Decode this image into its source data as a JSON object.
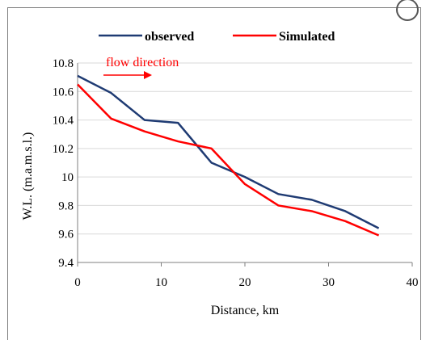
{
  "chart_data": {
    "type": "line",
    "title": "",
    "xlabel": "Distance, km",
    "ylabel": "W.L. (m.a.m.s.l.)",
    "xlim": [
      0,
      40
    ],
    "ylim": [
      9.4,
      10.8
    ],
    "x_ticks": [
      "0",
      "10",
      "20",
      "30",
      "40"
    ],
    "y_ticks": [
      "9.4",
      "9.6",
      "9.8",
      "10",
      "10.2",
      "10.4",
      "10.6",
      "10.8"
    ],
    "legend_position": "top",
    "grid": "horizontal",
    "annotation": {
      "text": "flow direction",
      "color": "#ff0000"
    },
    "series": [
      {
        "name": "observed",
        "color": "#1f3b73",
        "x": [
          0,
          4,
          8,
          12,
          16,
          20,
          24,
          28,
          32,
          36
        ],
        "y": [
          10.71,
          10.59,
          10.4,
          10.38,
          10.1,
          10.0,
          9.88,
          9.84,
          9.76,
          9.64
        ]
      },
      {
        "name": "Simulated",
        "color": "#ff0000",
        "x": [
          0,
          4,
          8,
          12,
          16,
          20,
          24,
          28,
          32,
          36
        ],
        "y": [
          10.65,
          10.41,
          10.32,
          10.25,
          10.2,
          9.95,
          9.8,
          9.76,
          9.69,
          9.59
        ]
      }
    ]
  }
}
